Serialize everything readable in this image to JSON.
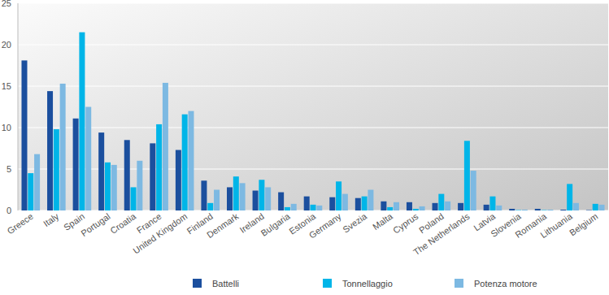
{
  "chart_data": {
    "type": "bar",
    "categories": [
      "Greece",
      "Italy",
      "Spain",
      "Portugal",
      "Croatia",
      "France",
      "United Kingdom",
      "Finland",
      "Denmark",
      "Ireland",
      "Bulgaria",
      "Estonia",
      "Germany",
      "Svezia",
      "Malta",
      "Cyprus",
      "Poland",
      "The Netherlands",
      "Latvia",
      "Slovenia",
      "Romania",
      "Lithuania",
      "Belgium"
    ],
    "series": [
      {
        "name": "Battelli",
        "color": "#1b4f9e",
        "values": [
          18.1,
          14.4,
          11.1,
          9.4,
          8.5,
          8.1,
          7.3,
          3.6,
          2.8,
          2.4,
          2.2,
          1.7,
          1.6,
          1.5,
          1.1,
          1.0,
          0.9,
          0.9,
          0.7,
          0.2,
          0.2,
          0.1,
          0.05
        ]
      },
      {
        "name": "Tonnellaggio",
        "color": "#00b5e8",
        "values": [
          4.5,
          9.8,
          21.5,
          5.8,
          2.8,
          10.4,
          11.6,
          0.9,
          4.1,
          3.7,
          0.4,
          0.7,
          3.5,
          1.7,
          0.4,
          0.2,
          2.0,
          8.4,
          1.7,
          0.05,
          0.05,
          3.2,
          0.8
        ]
      },
      {
        "name": "Potenza motore",
        "color": "#7db9e2",
        "values": [
          6.8,
          15.3,
          12.5,
          5.5,
          6.0,
          15.4,
          12.0,
          2.5,
          3.3,
          2.8,
          0.8,
          0.6,
          2.0,
          2.5,
          1.0,
          0.5,
          1.1,
          4.8,
          0.6,
          0.1,
          0.1,
          0.9,
          0.7
        ]
      }
    ],
    "ylim": [
      0,
      25
    ],
    "yticks": [
      0,
      5,
      10,
      15,
      20,
      25
    ],
    "grid": true,
    "legend": "bottom"
  }
}
